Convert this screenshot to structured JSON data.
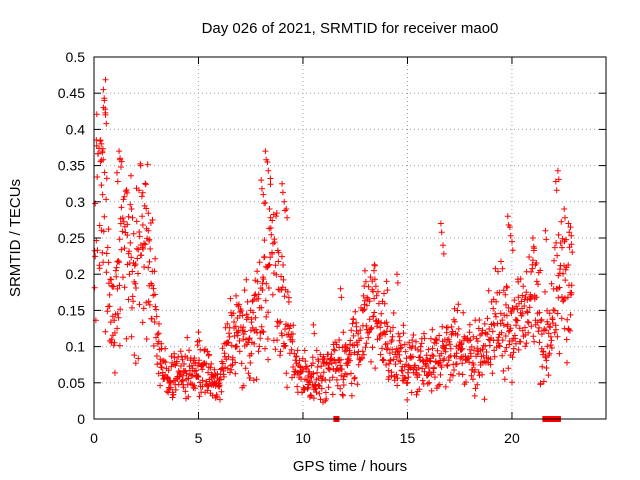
{
  "chart_data": {
    "type": "scatter",
    "title": "Day 026 of 2021, SRMTID for receiver mao0",
    "xlabel": "GPS time / hours",
    "ylabel": "SRMTID / TECUs",
    "xlim": [
      0,
      24.5
    ],
    "ylim": [
      0,
      0.5
    ],
    "x_ticks": [
      0,
      5,
      10,
      15,
      20
    ],
    "x_tick_labels": [
      "0",
      "5",
      "10",
      "15",
      "20"
    ],
    "y_ticks": [
      0,
      0.05,
      0.1,
      0.15,
      0.2,
      0.25,
      0.3,
      0.35,
      0.4,
      0.45,
      0.5
    ],
    "y_tick_labels": [
      "0",
      "0.05",
      "0.1",
      "0.15",
      "0.2",
      "0.25",
      "0.3",
      "0.35",
      "0.4",
      "0.45",
      "0.5"
    ],
    "grid": true,
    "marker": "+",
    "color": "#ff0000",
    "envelope": [
      [
        0.0,
        0.22
      ],
      [
        0.3,
        0.33
      ],
      [
        0.5,
        0.3
      ],
      [
        0.8,
        0.16
      ],
      [
        1.0,
        0.13
      ],
      [
        1.3,
        0.27
      ],
      [
        1.6,
        0.22
      ],
      [
        2.0,
        0.23
      ],
      [
        2.4,
        0.24
      ],
      [
        2.8,
        0.21
      ],
      [
        3.0,
        0.13
      ],
      [
        3.2,
        0.065
      ],
      [
        4.0,
        0.06
      ],
      [
        5.0,
        0.07
      ],
      [
        5.5,
        0.06
      ],
      [
        6.0,
        0.045
      ],
      [
        6.5,
        0.11
      ],
      [
        7.0,
        0.12
      ],
      [
        7.5,
        0.11
      ],
      [
        8.0,
        0.17
      ],
      [
        8.4,
        0.24
      ],
      [
        8.8,
        0.18
      ],
      [
        9.2,
        0.13
      ],
      [
        9.5,
        0.085
      ],
      [
        10.0,
        0.06
      ],
      [
        11.0,
        0.06
      ],
      [
        12.0,
        0.08
      ],
      [
        13.0,
        0.13
      ],
      [
        13.5,
        0.15
      ],
      [
        14.0,
        0.11
      ],
      [
        14.5,
        0.08
      ],
      [
        15.0,
        0.075
      ],
      [
        16.0,
        0.08
      ],
      [
        16.5,
        0.08
      ],
      [
        17.0,
        0.11
      ],
      [
        18.0,
        0.085
      ],
      [
        19.0,
        0.11
      ],
      [
        19.5,
        0.15
      ],
      [
        20.0,
        0.13
      ],
      [
        20.5,
        0.14
      ],
      [
        21.0,
        0.18
      ],
      [
        21.5,
        0.1
      ],
      [
        22.0,
        0.14
      ],
      [
        22.5,
        0.2
      ],
      [
        22.9,
        0.17
      ]
    ],
    "spikes": [
      [
        0.45,
        0.455
      ],
      [
        0.5,
        0.44
      ],
      [
        0.55,
        0.42
      ],
      [
        0.35,
        0.38
      ],
      [
        0.4,
        0.37
      ],
      [
        1.2,
        0.37
      ],
      [
        1.25,
        0.36
      ],
      [
        1.1,
        0.34
      ],
      [
        1.8,
        0.29
      ],
      [
        2.3,
        0.28
      ],
      [
        2.6,
        0.26
      ],
      [
        8.0,
        0.33
      ],
      [
        8.2,
        0.37
      ],
      [
        8.3,
        0.355
      ],
      [
        8.1,
        0.31
      ],
      [
        8.4,
        0.29
      ],
      [
        9.0,
        0.325
      ],
      [
        9.1,
        0.3
      ],
      [
        9.2,
        0.29
      ],
      [
        13.4,
        0.205
      ],
      [
        14.0,
        0.19
      ],
      [
        14.5,
        0.2
      ],
      [
        16.6,
        0.27
      ],
      [
        16.7,
        0.24
      ],
      [
        19.8,
        0.28
      ],
      [
        19.9,
        0.265
      ],
      [
        20.0,
        0.245
      ],
      [
        21.0,
        0.25
      ],
      [
        22.2,
        0.343
      ],
      [
        22.1,
        0.328
      ],
      [
        22.5,
        0.29
      ],
      [
        22.7,
        0.27
      ],
      [
        22.8,
        0.265
      ],
      [
        21.6,
        0.26
      ],
      [
        11.8,
        0.18
      ],
      [
        12.9,
        0.17
      ],
      [
        10.5,
        0.13
      ],
      [
        5.0,
        0.12
      ],
      [
        6.8,
        0.17
      ],
      [
        7.5,
        0.15
      ]
    ],
    "baseline_markers": [
      [
        11.6,
        0
      ],
      [
        21.6,
        0
      ],
      [
        21.7,
        0
      ],
      [
        21.8,
        0
      ],
      [
        21.9,
        0
      ],
      [
        22.0,
        0
      ],
      [
        22.1,
        0
      ],
      [
        22.2,
        0
      ]
    ]
  }
}
